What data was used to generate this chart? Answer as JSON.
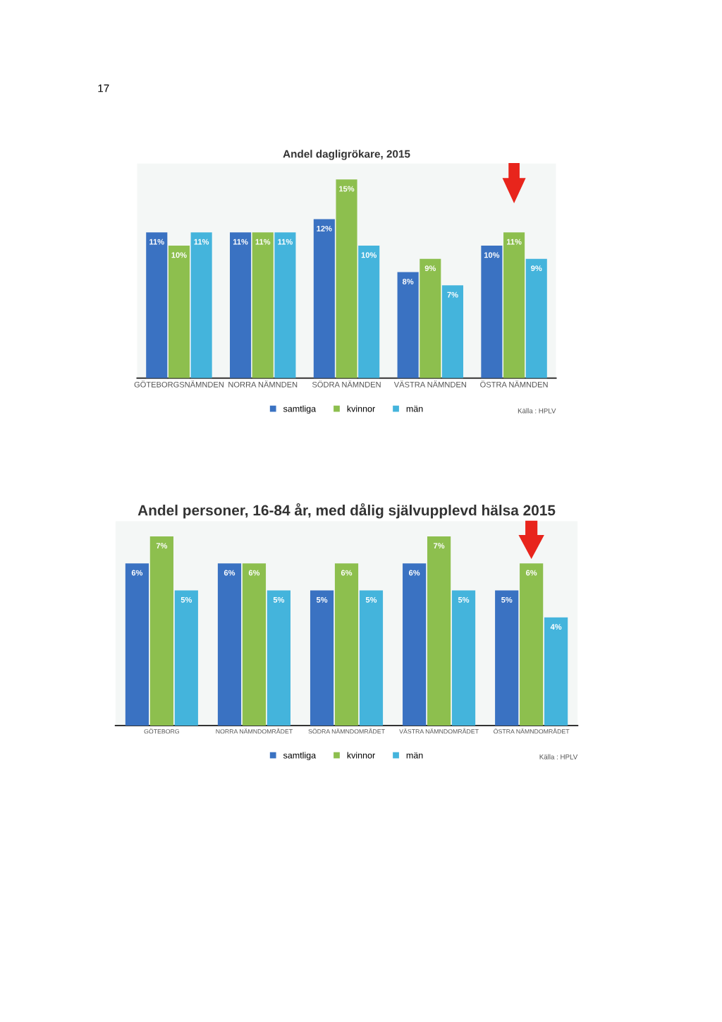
{
  "chart_data": [
    {
      "type": "bar",
      "title": "Andel dagligrökare, 2015",
      "categories": [
        "GÖTEBORGSNÄMNDEN",
        "NORRA NÄMNDEN",
        "SÖDRA NÄMNDEN",
        "VÄSTRA NÄMNDEN",
        "ÖSTRA NÄMNDEN"
      ],
      "series": [
        {
          "name": "samtliga",
          "color": "#3a72c2",
          "values": [
            11,
            11,
            12,
            8,
            10
          ],
          "value_labels": [
            "11%",
            "11%",
            "12%",
            "8%",
            "10%"
          ]
        },
        {
          "name": "kvinnor",
          "color": "#8dbf4e",
          "values": [
            10,
            11,
            15,
            9,
            11
          ],
          "value_labels": [
            "10%",
            "11%",
            "15%",
            "9%",
            "11%"
          ]
        },
        {
          "name": "män",
          "color": "#44b4dc",
          "values": [
            11,
            11,
            10,
            7,
            9
          ],
          "value_labels": [
            "11%",
            "11%",
            "10%",
            "7%",
            "9%"
          ]
        }
      ],
      "tick_labels": "x",
      "legend": "bottom",
      "annotations": [
        "17",
        "Källa : HPLV"
      ]
    },
    {
      "type": "bar",
      "title": "Andel personer, 16-84 år, med dålig självupplevd hälsa 2015",
      "categories": [
        "GÖTEBORG",
        "NORRA NÄMNDOMRÅDET",
        "SÖDRA NÄMNDOMRÅDET",
        "VÄSTRA NÄMNDOMRÅDET",
        "ÖSTRA NÄMNDOMRÅDET"
      ],
      "series": [
        {
          "name": "samtliga",
          "color": "#3a72c2",
          "values": [
            6,
            6,
            5,
            6,
            5
          ],
          "value_labels": [
            "6%",
            "6%",
            "5%",
            "6%",
            "5%"
          ]
        },
        {
          "name": "kvinnor",
          "color": "#8dbf4e",
          "values": [
            7,
            6,
            6,
            7,
            6
          ],
          "value_labels": [
            "7%",
            "6%",
            "6%",
            "7%",
            "6%"
          ]
        },
        {
          "name": "män",
          "color": "#44b4dc",
          "values": [
            5,
            5,
            5,
            5,
            4
          ],
          "value_labels": [
            "5%",
            "5%",
            "5%",
            "5%",
            "4%"
          ]
        }
      ],
      "tick_labels": "x",
      "legend": "bottom",
      "annotations": [
        "Källa : HPLV"
      ]
    }
  ]
}
